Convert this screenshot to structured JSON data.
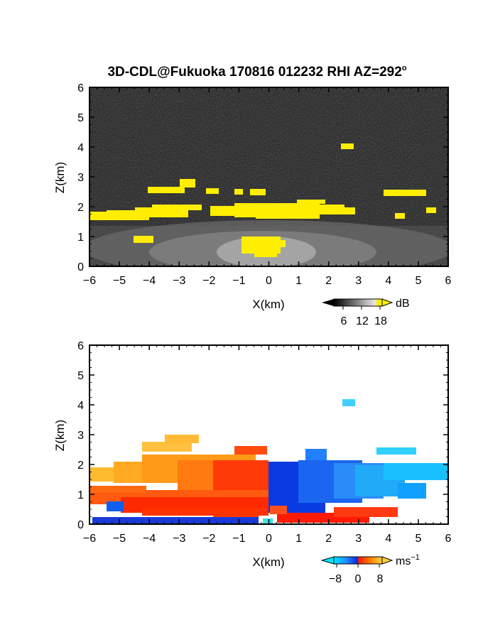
{
  "title": "3D-CDL@Fukuoka 170816 012232 RHI AZ=292",
  "title_sup": "o",
  "panels": [
    {
      "id": "reflectivity",
      "xlabel": "X(km)",
      "ylabel": "Z(km)",
      "colorbar": {
        "unit": "dB",
        "ticks": [
          "6",
          "12",
          "18"
        ],
        "range": [
          0,
          21
        ]
      }
    },
    {
      "id": "velocity",
      "xlabel": "X(km)",
      "ylabel": "Z(km)",
      "colorbar": {
        "unit": "ms",
        "unit_sup": "−1",
        "ticks": [
          "−8",
          "0",
          "8"
        ],
        "range": [
          -12,
          12
        ]
      }
    }
  ],
  "chart_data": [
    {
      "type": "heatmap",
      "title": "3D-CDL@Fukuoka 170816 012232 RHI AZ=292°",
      "xlabel": "X(km)",
      "ylabel": "Z(km)",
      "xlim": [
        -6,
        6
      ],
      "ylim": [
        0,
        6
      ],
      "xticks": [
        -6,
        -5,
        -4,
        -3,
        -2,
        -1,
        0,
        1,
        2,
        3,
        4,
        5,
        6
      ],
      "yticks": [
        0,
        1,
        2,
        3,
        4,
        5,
        6
      ],
      "colorbar": {
        "unit": "dB",
        "ticks": [
          6,
          12,
          18
        ]
      },
      "background": "dark gray speckle (low SNR noise) everywhere",
      "features": [
        {
          "name": "cloud-base layer",
          "x": [
            -6,
            6
          ],
          "z": [
            1.5,
            2.0
          ],
          "value_db": 20,
          "color": "#ffee00"
        },
        {
          "name": "upper cloud patches",
          "x": [
            -4.0,
            5.0
          ],
          "z": [
            2.2,
            3.0
          ],
          "value_db": 20,
          "color": "#ffee00"
        },
        {
          "name": "isolated cell",
          "x": [
            2.4,
            2.9
          ],
          "z": [
            3.9,
            4.2
          ],
          "value_db": 20,
          "color": "#ffee00"
        },
        {
          "name": "near-field bright region",
          "x": [
            -1.2,
            0.5
          ],
          "z": [
            0.3,
            1.0
          ],
          "value_db": 20,
          "color": "#ffee00"
        },
        {
          "name": "boundary-layer aerosol",
          "x": [
            -6,
            6
          ],
          "z": [
            0,
            1.5
          ],
          "value_db": [
            6,
            15
          ],
          "color": "grayscale"
        }
      ]
    },
    {
      "type": "heatmap",
      "title": "",
      "xlabel": "X(km)",
      "ylabel": "Z(km)",
      "xlim": [
        -6,
        6
      ],
      "ylim": [
        0,
        6
      ],
      "xticks": [
        -6,
        -5,
        -4,
        -3,
        -2,
        -1,
        0,
        1,
        2,
        3,
        4,
        5,
        6
      ],
      "yticks": [
        0,
        1,
        2,
        3,
        4,
        5,
        6
      ],
      "colorbar": {
        "unit": "ms-1",
        "ticks": [
          -8,
          0,
          8
        ]
      },
      "features": [
        {
          "name": "receding flow (upwind side)",
          "x": [
            -6,
            0
          ],
          "z": [
            0,
            2.0
          ],
          "velocity_ms": [
            2,
            8
          ],
          "color": "orange-red"
        },
        {
          "name": "approaching flow (downwind side)",
          "x": [
            0,
            4.6
          ],
          "z": [
            0.2,
            2.1
          ],
          "velocity_ms": [
            -8,
            -2
          ],
          "color": "blue"
        },
        {
          "name": "upper approaching flow",
          "x": [
            3.5,
            6
          ],
          "z": [
            1.2,
            2.6
          ],
          "velocity_ms": [
            -9,
            -6
          ],
          "color": "cyan"
        },
        {
          "name": "isolated cell",
          "x": [
            2.4,
            2.9
          ],
          "z": [
            4.0,
            4.2
          ],
          "velocity_ms": -8,
          "color": "cyan"
        },
        {
          "name": "upper receding patches",
          "x": [
            -4.2,
            -1.6
          ],
          "z": [
            2.0,
            3.0
          ],
          "velocity_ms": 6,
          "color": "orange"
        },
        {
          "name": "near-surface return flow",
          "x": [
            0.3,
            4.5
          ],
          "z": [
            0.1,
            0.5
          ],
          "velocity_ms": 5,
          "color": "red"
        }
      ]
    }
  ]
}
